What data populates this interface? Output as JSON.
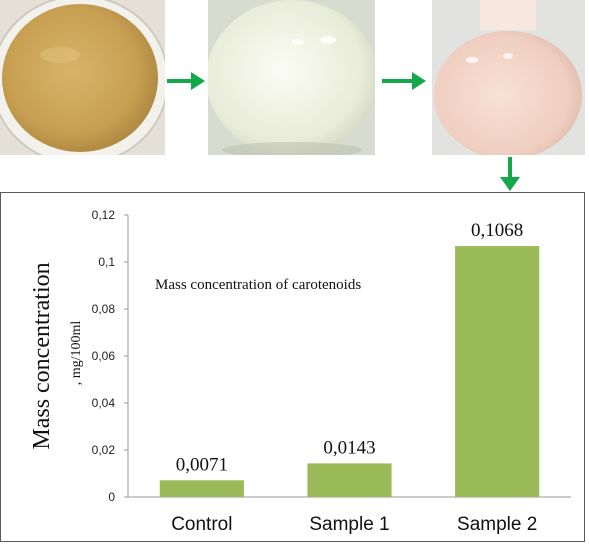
{
  "figure": {
    "photos": [
      {
        "name": "Orange-yellow powder in a petri dish",
        "color": "#c8a254"
      },
      {
        "name": "Cream-coloured liquid culture in a flask",
        "color": "#eef0e2"
      },
      {
        "name": "Light pink liquid culture in a flask",
        "color": "#efd0c3"
      }
    ],
    "arrow_color": "#14a84a"
  },
  "chart_data": {
    "type": "bar",
    "title": "Mass concentration of carotenoids",
    "ylabel": "Mass concentration",
    "ylabel_unit": ", mg/100ml",
    "xlabel": "",
    "categories": [
      "Control",
      "Sample 1",
      "Sample 2"
    ],
    "values": [
      0.0071,
      0.0143,
      0.1068
    ],
    "value_labels": [
      "0,0071",
      "0,0143",
      "0,1068"
    ],
    "ylim": [
      0,
      0.12
    ],
    "yticks": [
      0,
      0.02,
      0.04,
      0.06,
      0.08,
      0.1,
      0.12
    ],
    "ytick_labels": [
      "0",
      "0,02",
      "0,04",
      "0,06",
      "0,08",
      "0,1",
      "0,12"
    ],
    "bar_color": "#9bbb59",
    "grid": false,
    "legend": "none"
  }
}
